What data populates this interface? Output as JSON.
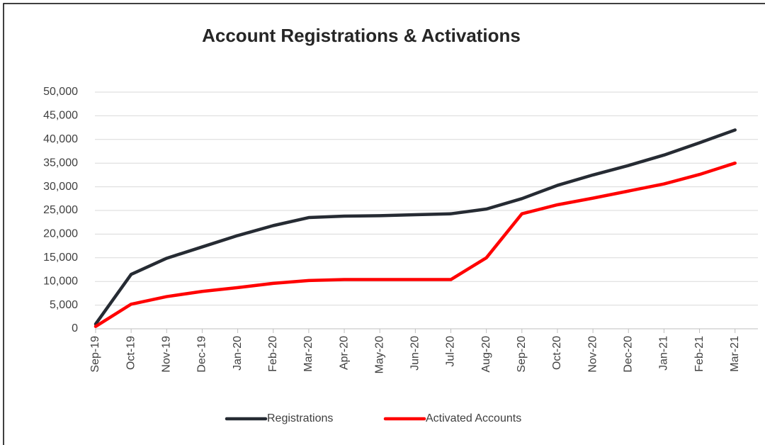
{
  "chart_data": {
    "type": "line",
    "title": "Account Registrations & Activations",
    "categories": [
      "Sep-19",
      "Oct-19",
      "Nov-19",
      "Dec-19",
      "Jan-20",
      "Feb-20",
      "Mar-20",
      "Apr-20",
      "May-20",
      "Jun-20",
      "Jul-20",
      "Aug-20",
      "Sep-20",
      "Oct-20",
      "Nov-20",
      "Dec-20",
      "Jan-21",
      "Feb-21",
      "Mar-21"
    ],
    "series": [
      {
        "name": "Registrations",
        "color": "#262b33",
        "values": [
          1000,
          11500,
          14900,
          17300,
          19700,
          21800,
          23500,
          23800,
          23900,
          24100,
          24300,
          25300,
          27500,
          30300,
          32500,
          34500,
          36700,
          39300,
          42000
        ]
      },
      {
        "name": "Activated Accounts",
        "color": "#ff0000",
        "values": [
          500,
          5200,
          6800,
          7900,
          8700,
          9600,
          10200,
          10400,
          10400,
          10400,
          10400,
          15000,
          24300,
          26200,
          27600,
          29100,
          30600,
          32600,
          35000
        ]
      }
    ],
    "ylim": [
      0,
      50000
    ],
    "yticks": [
      0,
      {
        "value": 5000,
        "label": "5,000"
      },
      {
        "value": 10000,
        "label": "10,000"
      },
      {
        "value": 15000,
        "label": "15,000"
      },
      {
        "value": 20000,
        "label": "20,000"
      },
      {
        "value": 25000,
        "label": "25,000"
      },
      {
        "value": 30000,
        "label": "30,000"
      },
      {
        "value": 35000,
        "label": "35,000"
      },
      {
        "value": 40000,
        "label": "40,000"
      },
      {
        "value": 45000,
        "label": "45,000"
      },
      {
        "value": 50000,
        "label": "50,000"
      }
    ],
    "grid": true,
    "legend": "bottom"
  }
}
